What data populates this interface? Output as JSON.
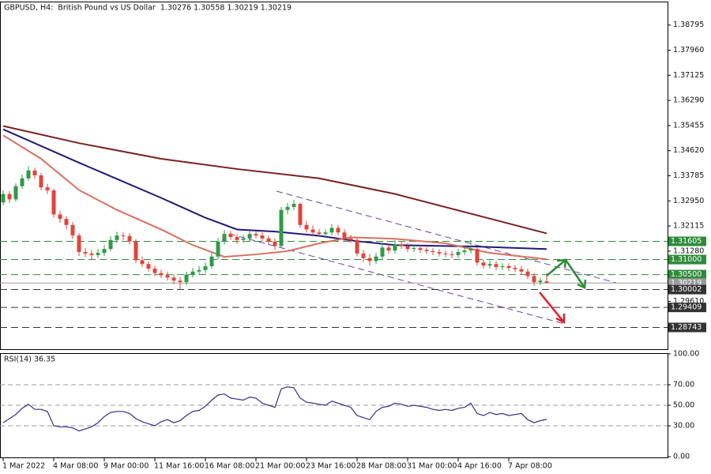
{
  "chart_data": [
    {
      "type": "candlestick",
      "title": "GBPUSD, H4:  British Pound vs US Dollar  1.30276 1.30558 1.30219 1.30219",
      "categories": [
        "1 Mar 2022",
        null,
        null,
        null,
        null,
        null,
        null,
        null,
        "4 Mar 08:00",
        null,
        null,
        null,
        null,
        null,
        null,
        null,
        "9 Mar 00:00",
        null,
        null,
        null,
        null,
        null,
        null,
        null,
        "11 Mar 16:00",
        null,
        null,
        null,
        null,
        null,
        null,
        null,
        "16 Mar 08:00",
        null,
        null,
        null,
        null,
        null,
        null,
        null,
        "21 Mar 00:00",
        null,
        null,
        null,
        null,
        null,
        null,
        null,
        "23 Mar 16:00",
        null,
        null,
        null,
        null,
        null,
        null,
        null,
        "28 Mar 08:00",
        null,
        null,
        null,
        null,
        null,
        null,
        null,
        "31 Mar 00:00",
        null,
        null,
        null,
        null,
        null,
        null,
        null,
        "4 Apr 16:00",
        null,
        null,
        null,
        null,
        null,
        null,
        null,
        "7 Apr 08:00",
        null,
        null,
        null,
        null,
        null,
        null
      ],
      "candles": [
        [
          1.329,
          1.333,
          1.328,
          1.3318
        ],
        [
          1.3318,
          1.3328,
          1.3288,
          1.33
        ],
        [
          1.33,
          1.3354,
          1.3292,
          1.3344
        ],
        [
          1.3344,
          1.3382,
          1.3335,
          1.337
        ],
        [
          1.337,
          1.341,
          1.3362,
          1.3396
        ],
        [
          1.3396,
          1.3405,
          1.3368,
          1.338
        ],
        [
          1.338,
          1.3388,
          1.333,
          1.334
        ],
        [
          1.334,
          1.3352,
          1.3318,
          1.333
        ],
        [
          1.333,
          1.3336,
          1.324,
          1.325
        ],
        [
          1.325,
          1.3262,
          1.3222,
          1.3235
        ],
        [
          1.3235,
          1.3245,
          1.32,
          1.3215
        ],
        [
          1.3215,
          1.3225,
          1.3168,
          1.318
        ],
        [
          1.318,
          1.3188,
          1.3112,
          1.3125
        ],
        [
          1.3125,
          1.3138,
          1.3108,
          1.312
        ],
        [
          1.312,
          1.3132,
          1.31,
          1.3115
        ],
        [
          1.3115,
          1.3135,
          1.3105,
          1.3122
        ],
        [
          1.3122,
          1.3148,
          1.3112,
          1.3135
        ],
        [
          1.3135,
          1.3178,
          1.3128,
          1.3165
        ],
        [
          1.3165,
          1.3192,
          1.3155,
          1.318
        ],
        [
          1.318,
          1.319,
          1.3165,
          1.3178
        ],
        [
          1.3178,
          1.3188,
          1.315,
          1.316
        ],
        [
          1.316,
          1.3168,
          1.3088,
          1.3098
        ],
        [
          1.3098,
          1.311,
          1.3075,
          1.3085
        ],
        [
          1.3085,
          1.3095,
          1.306,
          1.307
        ],
        [
          1.307,
          1.308,
          1.3045,
          1.3055
        ],
        [
          1.3055,
          1.3066,
          1.3038,
          1.3048
        ],
        [
          1.3048,
          1.306,
          1.303,
          1.304
        ],
        [
          1.304,
          1.305,
          1.3018,
          1.303
        ],
        [
          1.303,
          1.3042,
          1.3002,
          1.3025
        ],
        [
          1.3025,
          1.306,
          1.3015,
          1.305
        ],
        [
          1.305,
          1.3072,
          1.304,
          1.306
        ],
        [
          1.306,
          1.3078,
          1.305,
          1.3065
        ],
        [
          1.3065,
          1.309,
          1.3055,
          1.3078
        ],
        [
          1.3078,
          1.3122,
          1.307,
          1.311
        ],
        [
          1.311,
          1.3172,
          1.31,
          1.316
        ],
        [
          1.316,
          1.3198,
          1.315,
          1.3185
        ],
        [
          1.3185,
          1.3195,
          1.3165,
          1.3175
        ],
        [
          1.3175,
          1.3185,
          1.3152,
          1.3165
        ],
        [
          1.3165,
          1.3182,
          1.3155,
          1.317
        ],
        [
          1.317,
          1.3196,
          1.316,
          1.3185
        ],
        [
          1.3185,
          1.3195,
          1.317,
          1.318
        ],
        [
          1.318,
          1.319,
          1.316,
          1.317
        ],
        [
          1.317,
          1.318,
          1.3148,
          1.316
        ],
        [
          1.316,
          1.317,
          1.3132,
          1.3145
        ],
        [
          1.3145,
          1.3275,
          1.314,
          1.3265
        ],
        [
          1.3265,
          1.3288,
          1.325,
          1.3275
        ],
        [
          1.3275,
          1.3298,
          1.3265,
          1.3285
        ],
        [
          1.3285,
          1.329,
          1.3205,
          1.3215
        ],
        [
          1.3215,
          1.3228,
          1.319,
          1.32
        ],
        [
          1.32,
          1.3212,
          1.318,
          1.319
        ],
        [
          1.319,
          1.3202,
          1.3175,
          1.3185
        ],
        [
          1.3185,
          1.32,
          1.3175,
          1.319
        ],
        [
          1.319,
          1.3218,
          1.318,
          1.3205
        ],
        [
          1.3205,
          1.3215,
          1.318,
          1.319
        ],
        [
          1.319,
          1.32,
          1.316,
          1.317
        ],
        [
          1.317,
          1.3182,
          1.3155,
          1.3165
        ],
        [
          1.3165,
          1.3175,
          1.311,
          1.312
        ],
        [
          1.312,
          1.3132,
          1.3092,
          1.3105
        ],
        [
          1.3105,
          1.3118,
          1.308,
          1.3095
        ],
        [
          1.3095,
          1.3122,
          1.3085,
          1.311
        ],
        [
          1.311,
          1.3152,
          1.31,
          1.314
        ],
        [
          1.314,
          1.315,
          1.312,
          1.313
        ],
        [
          1.313,
          1.3165,
          1.312,
          1.315
        ],
        [
          1.315,
          1.316,
          1.3135,
          1.3145
        ],
        [
          1.3145,
          1.3155,
          1.3125,
          1.3135
        ],
        [
          1.3135,
          1.3148,
          1.3125,
          1.3138
        ],
        [
          1.3138,
          1.3148,
          1.3122,
          1.3132
        ],
        [
          1.3132,
          1.3142,
          1.3118,
          1.3128
        ],
        [
          1.3128,
          1.3138,
          1.3115,
          1.3125
        ],
        [
          1.3125,
          1.3135,
          1.311,
          1.312
        ],
        [
          1.312,
          1.313,
          1.3108,
          1.3118
        ],
        [
          1.3118,
          1.3128,
          1.3105,
          1.3115
        ],
        [
          1.3115,
          1.3136,
          1.3105,
          1.3125
        ],
        [
          1.3125,
          1.3142,
          1.3115,
          1.313
        ],
        [
          1.313,
          1.3165,
          1.312,
          1.3135
        ],
        [
          1.3135,
          1.314,
          1.308,
          1.309
        ],
        [
          1.309,
          1.31,
          1.307,
          1.308
        ],
        [
          1.308,
          1.3096,
          1.307,
          1.3085
        ],
        [
          1.3085,
          1.3095,
          1.3065,
          1.3075
        ],
        [
          1.3075,
          1.3088,
          1.3065,
          1.3078
        ],
        [
          1.3078,
          1.3088,
          1.3062,
          1.3072
        ],
        [
          1.3072,
          1.3082,
          1.3058,
          1.3068
        ],
        [
          1.3068,
          1.3078,
          1.305,
          1.306
        ],
        [
          1.306,
          1.307,
          1.3035,
          1.3045
        ],
        [
          1.3045,
          1.3055,
          1.3012,
          1.3025
        ],
        [
          1.3025,
          1.304,
          1.3015,
          1.303
        ],
        [
          1.30276,
          1.30558,
          1.30219,
          1.30219
        ]
      ],
      "up_color": "#2e9a45",
      "down_color": "#e0453a",
      "ylim": [
        1.2802,
        1.3955
      ],
      "yticks": [
        1.38795,
        {
          "value": 1.3796,
          "label": "1.37960"
        },
        1.37125,
        {
          "value": 1.3629,
          "label": "1.36290"
        },
        1.35455,
        {
          "value": 1.3462,
          "label": "1.34620"
        },
        1.33785,
        {
          "value": 1.3295,
          "label": "1.32950"
        },
        1.32115,
        {
          "value": 1.3128,
          "label": "1.31280"
        },
        {
          "value": 1.2961,
          "label": "1.29610"
        }
      ],
      "overlays": [
        {
          "color": "#7a1f1f",
          "x": [
            0,
            12,
            25,
            37,
            50,
            62,
            75,
            86
          ],
          "values": [
            1.3544,
            1.3487,
            1.3435,
            1.3401,
            1.337,
            1.3318,
            1.3247,
            1.3187
          ]
        },
        {
          "color": "#1f1a7a",
          "x": [
            0,
            12,
            25,
            32,
            37,
            43,
            50,
            56,
            62,
            75,
            86
          ],
          "values": [
            1.3533,
            1.3422,
            1.3305,
            1.3239,
            1.32,
            1.3193,
            1.3179,
            1.3161,
            1.3148,
            1.3143,
            1.3135
          ]
        },
        {
          "color": "#d9705f",
          "x": [
            0,
            6,
            12,
            18,
            25,
            30,
            35,
            40,
            45,
            50,
            55,
            62,
            70,
            77,
            86
          ],
          "values": [
            1.3513,
            1.3435,
            1.3331,
            1.3265,
            1.32,
            1.3148,
            1.3109,
            1.3117,
            1.3128,
            1.3154,
            1.3174,
            1.3169,
            1.3154,
            1.3122,
            1.3101
          ]
        }
      ],
      "levels": [
        {
          "value": 1.31605,
          "label": "1.31605",
          "color": "#2e8b3a",
          "dash": true
        },
        {
          "value": 1.31,
          "label": "1.31000",
          "color": "#2e8b3a",
          "dash": true
        },
        {
          "value": 1.305,
          "label": "1.30500",
          "color": "#2e8b3a",
          "dash": true
        },
        {
          "value": 1.30219,
          "label": "1.30219",
          "color": "#9a9a9a",
          "dash": false
        },
        {
          "value": 1.30002,
          "label": "1.30002",
          "color": "#333333",
          "dash": true
        },
        {
          "value": 1.29409,
          "label": "1.29409",
          "color": "#333333",
          "dash": true
        },
        {
          "value": 1.28743,
          "label": "1.28743",
          "color": "#333333",
          "dash": true
        }
      ]
    },
    {
      "type": "line",
      "title": "RSI(14) 36.35",
      "color": "#3a2b8a",
      "values": [
        33,
        37,
        41,
        47,
        51,
        46,
        46,
        44,
        30,
        29,
        29,
        28,
        25,
        27,
        29,
        33,
        39,
        43,
        44,
        44,
        42,
        37,
        34,
        32,
        30,
        34,
        36,
        33,
        35,
        40,
        44,
        45,
        49,
        55,
        60,
        61,
        57,
        56,
        55,
        58,
        57,
        52,
        50,
        48,
        66,
        68,
        67,
        57,
        53,
        52,
        51,
        50,
        54,
        52,
        50,
        48,
        40,
        38,
        36,
        44,
        48,
        49,
        52,
        51,
        49,
        50,
        49,
        48,
        46,
        45,
        46,
        45,
        47,
        48,
        52,
        42,
        40,
        43,
        41,
        42,
        40,
        41,
        42,
        36,
        33,
        35,
        36.35
      ],
      "ylim": [
        0,
        100
      ],
      "yticks": [
        {
          "value": 100,
          "label": "100.00"
        },
        {
          "value": 70,
          "label": "70.00"
        },
        {
          "value": 50,
          "label": "50.00"
        },
        {
          "value": 30,
          "label": "30.00"
        },
        {
          "value": 0,
          "label": "0.00"
        }
      ],
      "grid": true
    }
  ]
}
